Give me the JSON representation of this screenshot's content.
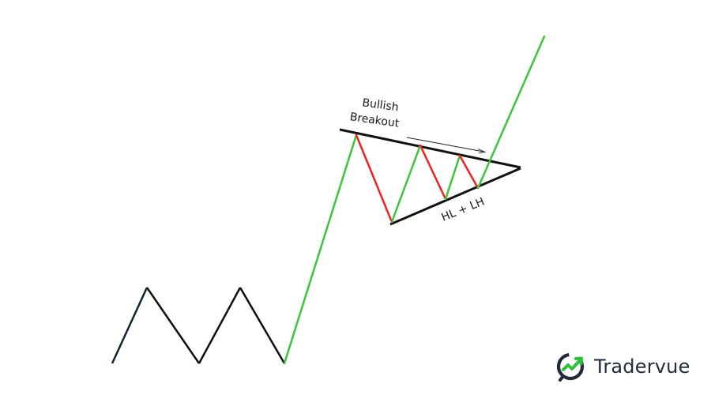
{
  "diagram": {
    "labels": {
      "breakout_line1": "Bullish",
      "breakout_line2": "Breakout",
      "support_label": "HL + LH"
    },
    "colors": {
      "up_leg": "#3cc43c",
      "down_leg": "#f0211f",
      "trendline": "#111111",
      "base_stroke": "#0d0d0d"
    }
  },
  "brand": {
    "name": "Tradervue",
    "icon": "tradervue-logo-icon",
    "colors": {
      "dark": "#1f2b3a",
      "accent": "#2fbf3a"
    }
  }
}
